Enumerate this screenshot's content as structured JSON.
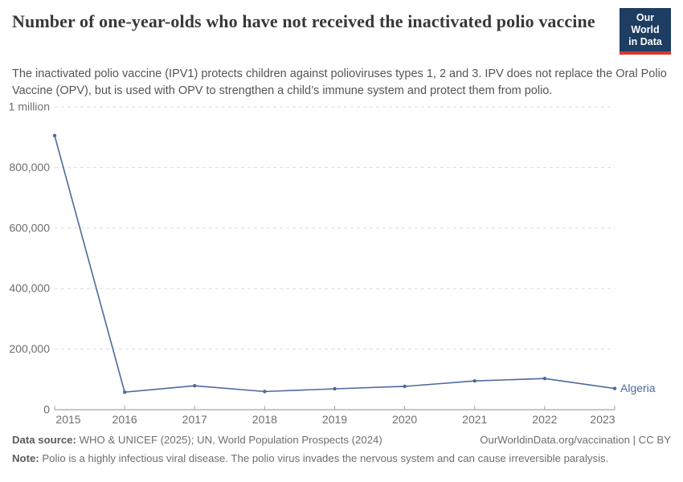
{
  "header": {
    "title": "Number of one-year-olds who have not received the inactivated polio vaccine",
    "subtitle": "The inactivated polio vaccine (IPV1) protects children against polioviruses types 1, 2 and 3. IPV does not replace the Oral Polio Vaccine (OPV), but is used with OPV to strengthen a child’s immune system and protect them from polio."
  },
  "logo": {
    "line1": "Our World",
    "line2": "in Data",
    "bg": "#1d3d63",
    "accent": "#d7382e"
  },
  "chart_data": {
    "type": "line",
    "title": "Number of one-year-olds who have not received the inactivated polio vaccine",
    "x": [
      2015,
      2016,
      2017,
      2018,
      2019,
      2020,
      2021,
      2022,
      2023
    ],
    "series": [
      {
        "name": "Algeria",
        "color": "#4c6a9c",
        "values": [
          905000,
          58000,
          79000,
          60000,
          69000,
          77000,
          95000,
          103000,
          70000
        ]
      }
    ],
    "ylim": [
      0,
      1000000
    ],
    "yticks": [
      {
        "value": 0,
        "label": "0"
      },
      {
        "value": 200000,
        "label": "200,000"
      },
      {
        "value": 400000,
        "label": "400,000"
      },
      {
        "value": 600000,
        "label": "600,000"
      },
      {
        "value": 800000,
        "label": "800,000"
      },
      {
        "value": 1000000,
        "label": "1 million"
      }
    ],
    "grid": true,
    "legend": "end-of-line-label",
    "grid_color": "#dcdcdc",
    "axis_color": "#8f8f8f",
    "tick_text_color": "#6e6e6e"
  },
  "footer": {
    "datasource_label": "Data source:",
    "datasource": "WHO & UNICEF (2025); UN, World Population Prospects (2024)",
    "attribution": "OurWorldinData.org/vaccination | CC BY",
    "note_label": "Note:",
    "note": "Polio is a highly infectious viral disease. The polio virus invades the nervous system and can cause irreversible paralysis."
  }
}
